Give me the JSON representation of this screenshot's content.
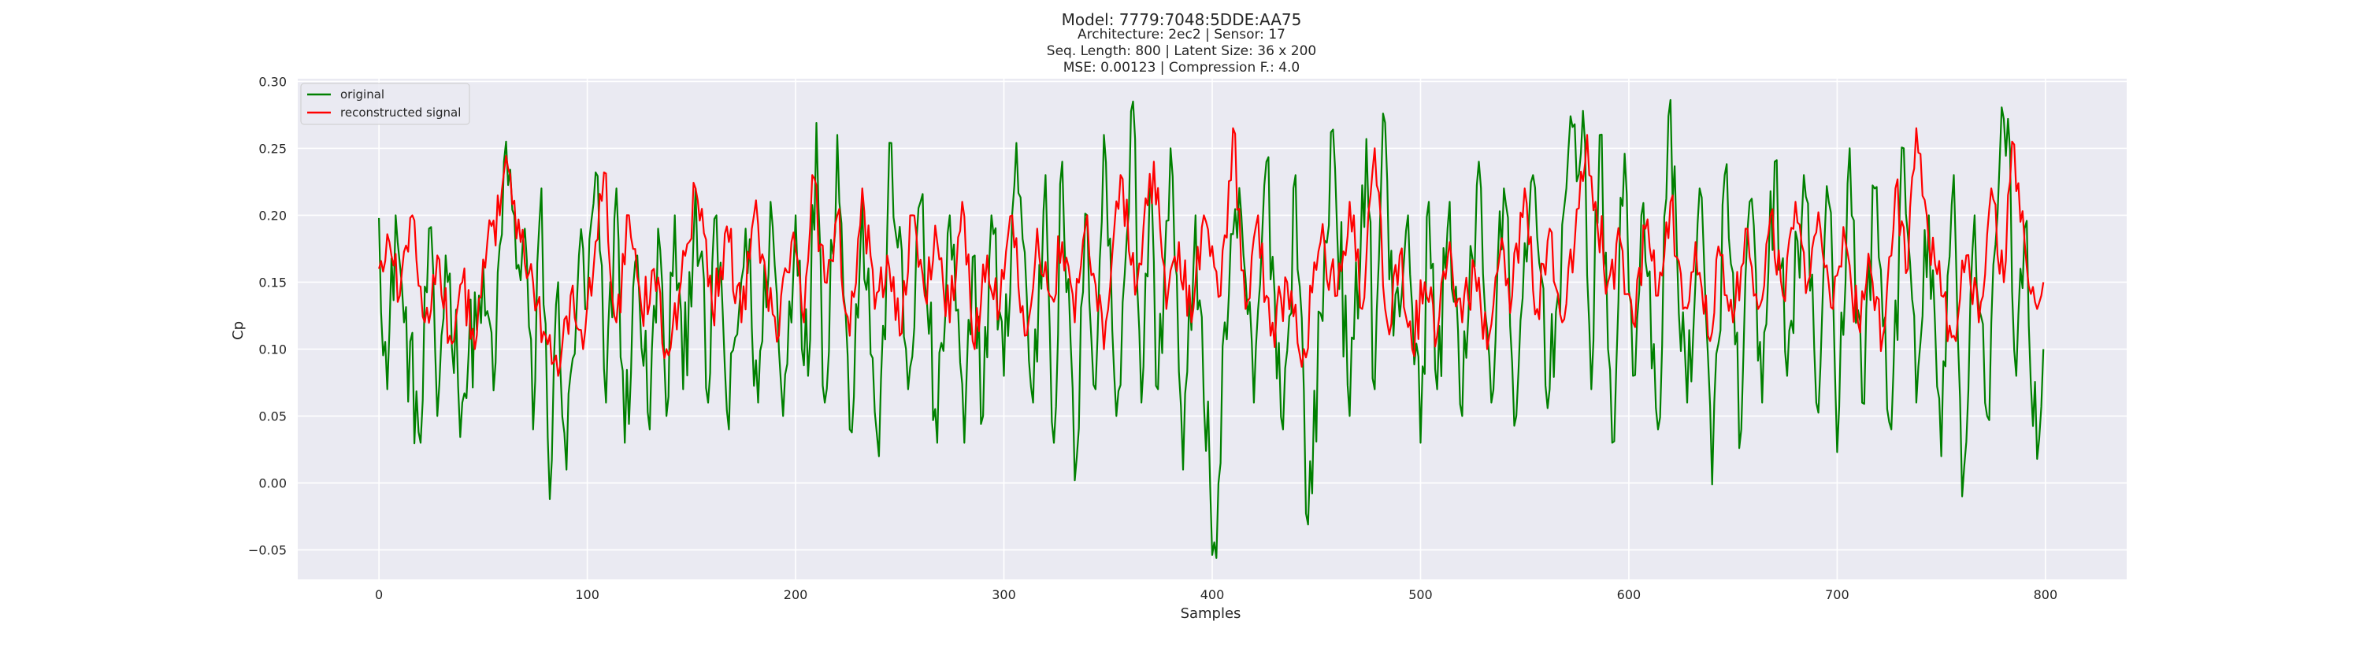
{
  "chart_data": {
    "type": "line",
    "title": "Model: 7779:7048:5DDE:AA75",
    "subtitle_lines": [
      "Architecture: 2ec2 | Sensor: 17",
      "Seq. Length: 800 | Latent Size: 36 x 200",
      "MSE: 0.00123 | Compression F.: 4.0"
    ],
    "xlabel": "Samples",
    "ylabel": "Cp",
    "xlim": [
      -39,
      839
    ],
    "ylim": [
      -0.072,
      0.302
    ],
    "xticks": [
      0,
      100,
      200,
      300,
      400,
      500,
      600,
      700,
      800
    ],
    "yticks": [
      -0.05,
      0.0,
      0.05,
      0.1,
      0.15,
      0.2,
      0.25,
      0.3
    ],
    "ytick_labels": [
      "−0.05",
      "0.00",
      "0.05",
      "0.10",
      "0.15",
      "0.20",
      "0.25",
      "0.30"
    ],
    "grid": true,
    "legend_position": "top-left",
    "background_color": "#eaeaf2",
    "series": [
      {
        "name": "original",
        "color": "#008000",
        "n_points": 800,
        "x": [
          0,
          4,
          8,
          12,
          20,
          24,
          28,
          32,
          40,
          48,
          56,
          61,
          66,
          70,
          74,
          78,
          82,
          86,
          90,
          96,
          100,
          104,
          109,
          114,
          118,
          124,
          130,
          134,
          138,
          142,
          146,
          152,
          158,
          162,
          168,
          176,
          182,
          188,
          194,
          200,
          206,
          210,
          214,
          220,
          226,
          232,
          240,
          246,
          254,
          260,
          268,
          274,
          281,
          286,
          290,
          294,
          300,
          306,
          314,
          320,
          324,
          328,
          334,
          340,
          344,
          348,
          354,
          362,
          366,
          370,
          374,
          380,
          386,
          392,
          396,
          402,
          406,
          414,
          420,
          426,
          434,
          440,
          446,
          458,
          466,
          474,
          478,
          482,
          487,
          494,
          500,
          504,
          508,
          514,
          520,
          528,
          534,
          540,
          546,
          554,
          562,
          570,
          578,
          582,
          586,
          592,
          598,
          602,
          606,
          614,
          619,
          628,
          634,
          640,
          646,
          654,
          658,
          664,
          670,
          676,
          684,
          690,
          696,
          700,
          706,
          712,
          718,
          726,
          732,
          738,
          744,
          750,
          756,
          760,
          766,
          772,
          778,
          782,
          786,
          790,
          796,
          799
        ],
        "y": [
          0.198,
          0.07,
          0.2,
          0.12,
          0.03,
          0.19,
          0.05,
          0.17,
          0.06,
          0.14,
          0.09,
          0.255,
          0.16,
          0.19,
          0.04,
          0.22,
          -0.012,
          0.15,
          0.01,
          0.17,
          0.13,
          0.232,
          0.06,
          0.22,
          0.03,
          0.17,
          0.04,
          0.19,
          0.05,
          0.2,
          0.07,
          0.22,
          0.06,
          0.2,
          0.04,
          0.19,
          0.06,
          0.21,
          0.05,
          0.2,
          0.08,
          0.269,
          0.06,
          0.26,
          0.04,
          0.21,
          0.02,
          0.254,
          0.07,
          0.21,
          0.03,
          0.2,
          0.03,
          0.17,
          0.05,
          0.2,
          0.08,
          0.254,
          0.06,
          0.23,
          0.03,
          0.24,
          0.002,
          0.2,
          0.07,
          0.26,
          0.05,
          0.285,
          0.06,
          0.22,
          0.07,
          0.25,
          0.01,
          0.2,
          0.06,
          -0.056,
          0.12,
          0.2,
          0.06,
          0.24,
          0.04,
          0.23,
          -0.031,
          0.264,
          0.05,
          0.257,
          0.07,
          0.276,
          0.11,
          0.2,
          0.03,
          0.21,
          0.07,
          0.21,
          0.05,
          0.24,
          0.06,
          0.22,
          0.05,
          0.23,
          0.07,
          0.22,
          0.278,
          0.07,
          0.26,
          0.03,
          0.246,
          0.08,
          0.2,
          0.04,
          0.274,
          0.06,
          0.22,
          -0.001,
          0.23,
          0.04,
          0.21,
          0.06,
          0.24,
          0.08,
          0.23,
          0.06,
          0.21,
          0.023,
          0.25,
          0.06,
          0.22,
          0.04,
          0.25,
          0.06,
          0.2,
          0.02,
          0.23,
          -0.01,
          0.2,
          0.05,
          0.24,
          0.272,
          0.08,
          0.19,
          0.018,
          0.1
        ]
      },
      {
        "name": "reconstructed signal",
        "color": "#ff0000",
        "n_points": 800,
        "x": [
          0,
          5,
          10,
          16,
          22,
          28,
          34,
          40,
          46,
          52,
          58,
          62,
          68,
          74,
          80,
          86,
          92,
          98,
          103,
          108,
          114,
          120,
          126,
          132,
          138,
          144,
          152,
          160,
          168,
          174,
          180,
          186,
          192,
          198,
          204,
          208,
          214,
          220,
          226,
          232,
          238,
          244,
          250,
          256,
          262,
          268,
          274,
          280,
          286,
          292,
          298,
          304,
          310,
          316,
          322,
          328,
          334,
          340,
          348,
          356,
          364,
          372,
          378,
          384,
          390,
          396,
          404,
          410,
          416,
          422,
          428,
          436,
          444,
          452,
          460,
          466,
          472,
          478,
          484,
          490,
          496,
          502,
          508,
          514,
          520,
          526,
          532,
          538,
          544,
          550,
          556,
          562,
          568,
          574,
          580,
          584,
          590,
          596,
          602,
          608,
          614,
          620,
          626,
          632,
          638,
          644,
          650,
          656,
          662,
          668,
          674,
          680,
          686,
          692,
          698,
          704,
          710,
          716,
          722,
          728,
          734,
          738,
          744,
          750,
          756,
          762,
          768,
          774,
          780,
          784,
          790,
          796,
          799
        ],
        "y": [
          0.16,
          0.18,
          0.14,
          0.2,
          0.12,
          0.17,
          0.11,
          0.15,
          0.1,
          0.18,
          0.2,
          0.235,
          0.18,
          0.15,
          0.11,
          0.08,
          0.14,
          0.1,
          0.16,
          0.232,
          0.12,
          0.2,
          0.13,
          0.16,
          0.1,
          0.14,
          0.22,
          0.13,
          0.18,
          0.12,
          0.2,
          0.15,
          0.11,
          0.18,
          0.12,
          0.23,
          0.15,
          0.2,
          0.11,
          0.22,
          0.13,
          0.17,
          0.11,
          0.2,
          0.14,
          0.18,
          0.12,
          0.21,
          0.1,
          0.17,
          0.13,
          0.2,
          0.11,
          0.19,
          0.14,
          0.18,
          0.12,
          0.2,
          0.1,
          0.23,
          0.15,
          0.24,
          0.13,
          0.18,
          0.12,
          0.2,
          0.14,
          0.265,
          0.13,
          0.2,
          0.11,
          0.15,
          0.1,
          0.18,
          0.14,
          0.21,
          0.13,
          0.25,
          0.12,
          0.17,
          0.1,
          0.15,
          0.11,
          0.18,
          0.12,
          0.16,
          0.1,
          0.17,
          0.14,
          0.22,
          0.13,
          0.19,
          0.12,
          0.18,
          0.26,
          0.21,
          0.15,
          0.18,
          0.12,
          0.19,
          0.14,
          0.21,
          0.13,
          0.18,
          0.11,
          0.17,
          0.12,
          0.19,
          0.13,
          0.2,
          0.14,
          0.21,
          0.15,
          0.19,
          0.13,
          0.18,
          0.12,
          0.16,
          0.11,
          0.22,
          0.16,
          0.265,
          0.18,
          0.14,
          0.11,
          0.17,
          0.12,
          0.22,
          0.15,
          0.255,
          0.18,
          0.13,
          0.15
        ]
      }
    ]
  }
}
